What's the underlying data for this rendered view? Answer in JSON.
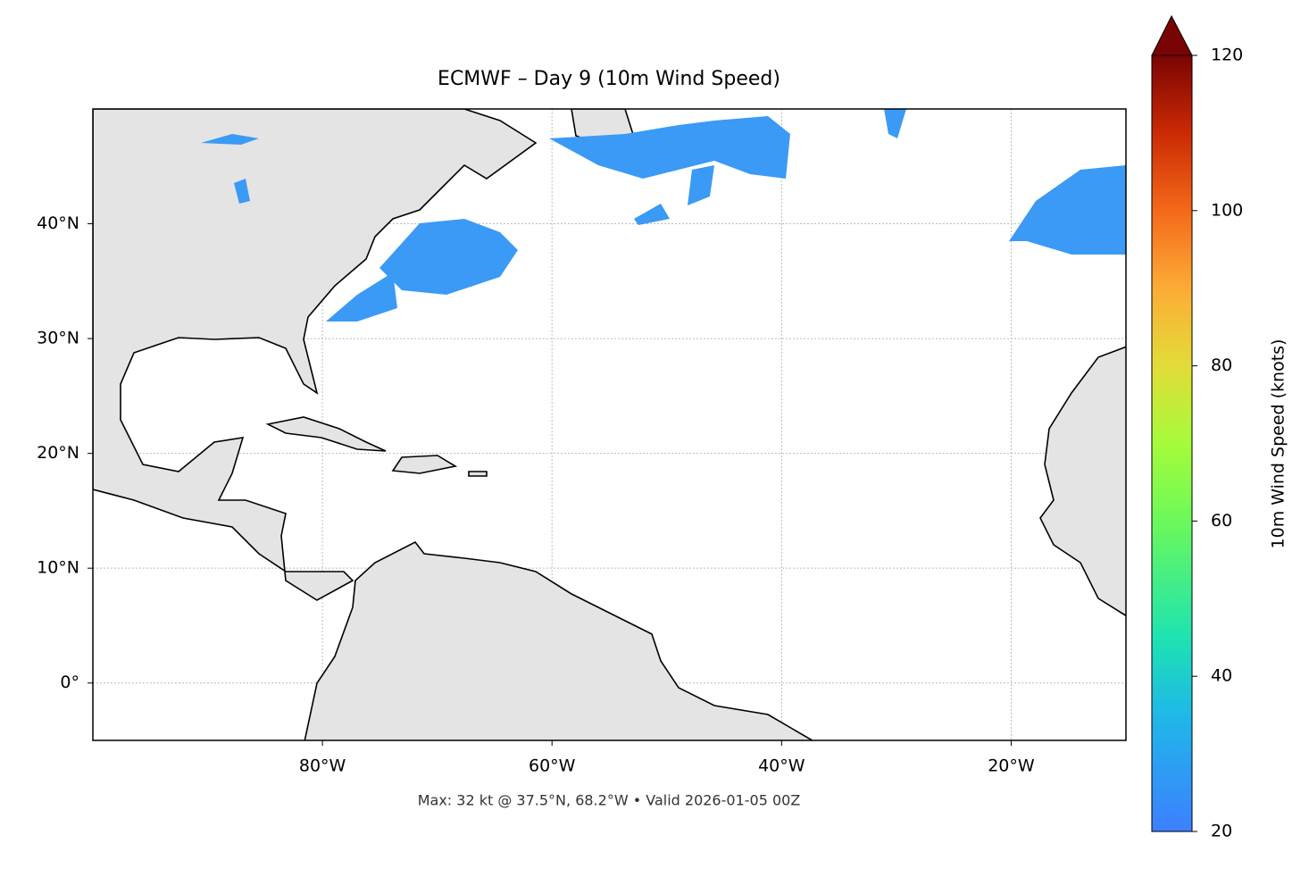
{
  "map": {
    "title": "ECMWF – Day 9 (10m Wind Speed)",
    "footer": "Max: 32 kt @ 37.5°N, 68.2°W • Valid 2026-01-05 00Z",
    "lonlim": [
      -100,
      -10
    ],
    "latlim": [
      -5,
      50
    ],
    "lon_ticks": [
      {
        "value": -80,
        "label": "80°W"
      },
      {
        "value": -60,
        "label": "60°W"
      },
      {
        "value": -40,
        "label": "40°W"
      },
      {
        "value": -20,
        "label": "20°W"
      }
    ],
    "lat_ticks": [
      {
        "value": 40,
        "label": "40°N"
      },
      {
        "value": 30,
        "label": "30°N"
      },
      {
        "value": 20,
        "label": "20°N"
      },
      {
        "value": 10,
        "label": "10°N"
      },
      {
        "value": 0,
        "label": "0°"
      }
    ],
    "grid": true
  },
  "colorbar": {
    "label": "10m Wind Speed (knots)",
    "lim": [
      20,
      120
    ],
    "ticks": [
      20,
      40,
      60,
      80,
      100,
      120
    ]
  }
}
